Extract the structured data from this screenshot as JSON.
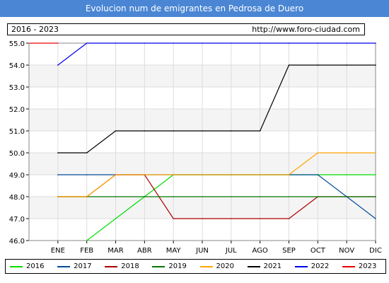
{
  "header": {
    "title": "Evolucion num de emigrantes en Pedrosa de Duero"
  },
  "info": {
    "years_range": "2016 - 2023",
    "url": "http://www.foro-ciudad.com"
  },
  "chart_data": {
    "type": "line",
    "title": "Evolucion num de emigrantes en Pedrosa de Duero",
    "xlabel": "",
    "ylabel": "",
    "categories": [
      "ENE",
      "FEB",
      "MAR",
      "ABR",
      "MAY",
      "JUN",
      "JUL",
      "AGO",
      "SEP",
      "OCT",
      "NOV",
      "DIC"
    ],
    "ylim": [
      46.0,
      55.0
    ],
    "yticks": [
      "46.0",
      "47.0",
      "48.0",
      "49.0",
      "50.0",
      "51.0",
      "52.0",
      "53.0",
      "54.0",
      "55.0"
    ],
    "grid": true,
    "legend_placement": "bottom",
    "series": [
      {
        "name": "2016",
        "color": "#00dd00",
        "values": [
          null,
          46,
          47,
          48,
          49,
          49,
          49,
          49,
          49,
          49,
          49,
          49
        ]
      },
      {
        "name": "2017",
        "color": "#004c99",
        "values": [
          49,
          49,
          49,
          49,
          49,
          49,
          49,
          49,
          49,
          49,
          48,
          47
        ]
      },
      {
        "name": "2018",
        "color": "#aa0000",
        "values": [
          48,
          48,
          49,
          49,
          47,
          47,
          47,
          47,
          47,
          48,
          48,
          48
        ]
      },
      {
        "name": "2019",
        "color": "#007700",
        "values": [
          48,
          48,
          48,
          48,
          48,
          48,
          48,
          48,
          48,
          48,
          48,
          48
        ]
      },
      {
        "name": "2020",
        "color": "#ffa500",
        "values": [
          48,
          48,
          49,
          49,
          49,
          49,
          49,
          49,
          49,
          50,
          50,
          50
        ]
      },
      {
        "name": "2021",
        "color": "#000000",
        "values": [
          50,
          50,
          51,
          51,
          51,
          51,
          51,
          51,
          54,
          54,
          54,
          54
        ]
      },
      {
        "name": "2022",
        "color": "#0000ee",
        "values": [
          54,
          55,
          55,
          55,
          55,
          55,
          55,
          55,
          55,
          55,
          55,
          55
        ]
      },
      {
        "name": "2023",
        "color": "#ee0000",
        "values": [
          55,
          null,
          null,
          null,
          null,
          null,
          null,
          null,
          null,
          null,
          null,
          null
        ]
      }
    ]
  }
}
